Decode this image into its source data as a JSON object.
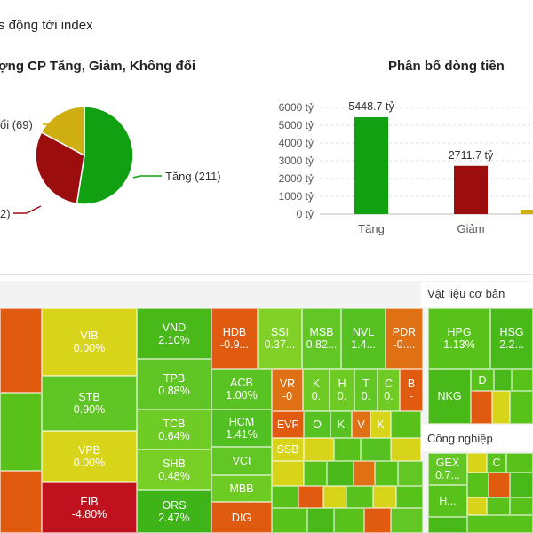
{
  "header": {
    "title": "s động tới index"
  },
  "pie": {
    "title": "ợng CP Tăng, Giảm, Không đổi",
    "slices": [
      {
        "label": "Tăng (211)",
        "value": 211,
        "color": "#11a011"
      },
      {
        "label": "2)",
        "value": 122,
        "color": "#9c0e0e"
      },
      {
        "label": "ổi (69)",
        "value": 69,
        "color": "#cfae12"
      }
    ]
  },
  "chart_data": {
    "type": "bar",
    "title": "Phân bố dòng tiền",
    "categories": [
      "Tăng",
      "Giảm"
    ],
    "values": [
      5448.7,
      2711.7
    ],
    "value_labels": [
      "5448.7 tỷ",
      "2711.7 tỷ"
    ],
    "colors": [
      "#11a011",
      "#9c0e0e"
    ],
    "y_ticks": [
      "0 tỷ",
      "1000 tỷ",
      "2000 tỷ",
      "3000 tỷ",
      "4000 tỷ",
      "5000 tỷ",
      "6000 tỷ"
    ],
    "ylim": [
      0,
      6000
    ],
    "grid": true
  },
  "treemap": {
    "sectors": [
      {
        "name": "Vật liệu cơ bản"
      },
      {
        "name": "Công nghiệp"
      }
    ],
    "tiles": [
      {
        "sym": "",
        "pct": "",
        "color": "#e05a10"
      },
      {
        "sym": "",
        "pct": "",
        "color": "#58c21a"
      },
      {
        "sym": "",
        "pct": "",
        "color": "#e05a10"
      },
      {
        "sym": "VIB",
        "pct": "0.00%",
        "color": "#d7d419"
      },
      {
        "sym": "STB",
        "pct": "0.90%",
        "color": "#5fc524"
      },
      {
        "sym": "VPB",
        "pct": "0.00%",
        "color": "#d7d419"
      },
      {
        "sym": "EIB",
        "pct": "-4.80%",
        "color": "#c0121e"
      },
      {
        "sym": "VND",
        "pct": "2.10%",
        "color": "#49b819"
      },
      {
        "sym": "TPB",
        "pct": "0.88%",
        "color": "#5fc524"
      },
      {
        "sym": "TCB",
        "pct": "0.64%",
        "color": "#6fcc24"
      },
      {
        "sym": "SHB",
        "pct": "0.48%",
        "color": "#78cf26"
      },
      {
        "sym": "ORS",
        "pct": "2.47%",
        "color": "#3eb418"
      },
      {
        "sym": "HDB",
        "pct": "-0.9...",
        "color": "#e05a10"
      },
      {
        "sym": "SSI",
        "pct": "0.37...",
        "color": "#80d027"
      },
      {
        "sym": "MSB",
        "pct": "0.82...",
        "color": "#62c624"
      },
      {
        "sym": "NVL",
        "pct": "1.4...",
        "color": "#56c222"
      },
      {
        "sym": "PDR",
        "pct": "-0....",
        "color": "#e07014"
      },
      {
        "sym": "ACB",
        "pct": "1.00%",
        "color": "#5ac324"
      },
      {
        "sym": "HCM",
        "pct": "1.41%",
        "color": "#52c022"
      },
      {
        "sym": "VCI",
        "pct": "",
        "color": "#62c624"
      },
      {
        "sym": "MBB",
        "pct": "",
        "color": "#6ecb24"
      },
      {
        "sym": "DIG",
        "pct": "",
        "color": "#e05a10"
      },
      {
        "sym": "VR",
        "pct": "-0",
        "color": "#e07014"
      },
      {
        "sym": "K",
        "pct": "0.",
        "color": "#6ecb24"
      },
      {
        "sym": "H",
        "pct": "0.",
        "color": "#6ecb24"
      },
      {
        "sym": "T",
        "pct": "0.",
        "color": "#62c624"
      },
      {
        "sym": "C",
        "pct": "0.",
        "color": "#70cc24"
      },
      {
        "sym": "B",
        "pct": "-",
        "color": "#e05a10"
      },
      {
        "sym": "EVF",
        "pct": "",
        "color": "#e05a10"
      },
      {
        "sym": "O",
        "pct": "",
        "color": "#56c222"
      },
      {
        "sym": "K",
        "pct": "",
        "color": "#56c222"
      },
      {
        "sym": "V",
        "pct": "",
        "color": "#e07014"
      },
      {
        "sym": "K",
        "pct": "",
        "color": "#d7d419"
      },
      {
        "sym": "SSB",
        "pct": "",
        "color": "#d7d419"
      },
      {
        "sym": "HPG",
        "pct": "1.13%",
        "color": "#58c21a"
      },
      {
        "sym": "HSG",
        "pct": "2.2...",
        "color": "#49b819"
      },
      {
        "sym": "NKG",
        "pct": "",
        "color": "#49b819"
      },
      {
        "sym": "D",
        "pct": "",
        "color": "#58c21a"
      },
      {
        "sym": "GEX",
        "pct": "0.7...",
        "color": "#62c624"
      },
      {
        "sym": "H...",
        "pct": "",
        "color": "#58c21a"
      },
      {
        "sym": "C",
        "pct": "",
        "color": "#58c21a"
      }
    ]
  }
}
